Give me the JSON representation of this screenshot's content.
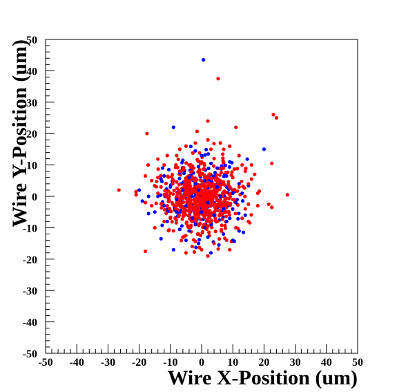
{
  "chart_data": {
    "type": "scatter",
    "title": "",
    "xlabel": "Wire X-Position (um)",
    "ylabel": "Wire Y-Position (um)",
    "xlim": [
      -50,
      50
    ],
    "ylim": [
      -50,
      50
    ],
    "x_ticks": [
      "-50",
      "-40",
      "-30",
      "-20",
      "-10",
      "0",
      "10",
      "20",
      "30",
      "40",
      "50"
    ],
    "y_ticks": [
      "-50",
      "-40",
      "-30",
      "-20",
      "-10",
      "0",
      "10",
      "20",
      "30",
      "40",
      "50"
    ],
    "grid": false,
    "legend": "none",
    "series": [
      {
        "color": "#0000ff",
        "points": [
          [
            0.6,
            43.5
          ],
          [
            -9,
            22
          ],
          [
            20,
            15
          ],
          [
            -2,
            14.5
          ],
          [
            -12.5,
            9
          ],
          [
            -10.5,
            8.5
          ],
          [
            -12,
            6.5
          ],
          [
            -13,
            5.5
          ],
          [
            -7,
            7.5
          ],
          [
            -4,
            6
          ],
          [
            -1,
            9.5
          ],
          [
            3,
            10.5
          ],
          [
            5,
            9
          ],
          [
            8,
            6.5
          ],
          [
            12,
            4
          ],
          [
            10,
            1
          ],
          [
            13,
            1
          ],
          [
            -2,
            4
          ],
          [
            -6,
            2
          ],
          [
            -10,
            3
          ],
          [
            -14,
            0
          ],
          [
            -17,
            0
          ],
          [
            -19,
            -1.5
          ],
          [
            -12,
            -3
          ],
          [
            -8,
            -5
          ],
          [
            -5,
            -3
          ],
          [
            -3,
            -7
          ],
          [
            0,
            -5
          ],
          [
            4,
            -6
          ],
          [
            7,
            -4
          ],
          [
            11,
            -2
          ],
          [
            -15,
            -5
          ],
          [
            -17,
            -5.5
          ],
          [
            -13,
            -13.5
          ],
          [
            -9,
            -17
          ],
          [
            -5,
            -14
          ],
          [
            -1,
            -15
          ],
          [
            1,
            -10
          ],
          [
            3,
            -18
          ],
          [
            7,
            -12
          ],
          [
            13,
            -7
          ],
          [
            14,
            -6
          ],
          [
            -7,
            -10.5
          ],
          [
            -4,
            -11
          ],
          [
            2,
            -2
          ],
          [
            -1,
            2
          ],
          [
            1,
            5
          ],
          [
            5,
            3
          ],
          [
            8,
            -8
          ],
          [
            -11,
            -8
          ],
          [
            -20,
            2
          ],
          [
            -6,
            11.5
          ],
          [
            0,
            13
          ],
          [
            9,
            11
          ],
          [
            -3,
            0
          ],
          [
            6,
            0
          ],
          [
            -8,
            -1
          ],
          [
            2,
            -13
          ],
          [
            10,
            -14
          ],
          [
            -2,
            -9
          ]
        ]
      },
      {
        "color": "#ff0000",
        "points": [
          [
            5.3,
            37.5
          ],
          [
            23,
            26
          ],
          [
            24,
            25
          ],
          [
            -17.5,
            20
          ],
          [
            2,
            24
          ],
          [
            11,
            22
          ],
          [
            22.5,
            10.5
          ],
          [
            -18,
            -17.5
          ],
          [
            27.5,
            0.5
          ],
          [
            -26.5,
            2
          ],
          [
            22.5,
            -3.5
          ],
          [
            21.5,
            -2.5
          ],
          [
            -18,
            6.5
          ],
          [
            -21,
            0.5
          ],
          [
            -21,
            1.5
          ],
          [
            16,
            5.5
          ],
          [
            17,
            7
          ],
          [
            15,
            -2.5
          ],
          [
            18,
            1
          ],
          [
            -16,
            -3
          ],
          [
            -14,
            1
          ],
          [
            -12,
            10
          ],
          [
            -8,
            13
          ],
          [
            -5,
            16
          ],
          [
            -2,
            17
          ],
          [
            2,
            18
          ],
          [
            6,
            17
          ],
          [
            9,
            16
          ],
          [
            13,
            10
          ],
          [
            14,
            8
          ],
          [
            15,
            4
          ],
          [
            -13,
            3
          ],
          [
            -11,
            -3
          ],
          [
            -10,
            -7
          ],
          [
            -9,
            -11
          ],
          [
            -6,
            -13
          ],
          [
            -3,
            -16
          ],
          [
            0,
            -17
          ],
          [
            4,
            -15
          ],
          [
            8,
            -14
          ],
          [
            11,
            -10
          ],
          [
            13,
            -7
          ],
          [
            14,
            -4
          ],
          [
            12,
            3
          ],
          [
            10,
            6
          ],
          [
            7,
            9
          ],
          [
            4,
            12
          ],
          [
            0,
            11
          ],
          [
            -4,
            10
          ],
          [
            -7,
            8
          ],
          [
            -9,
            5
          ],
          [
            -10,
            1
          ],
          [
            -8,
            -2
          ],
          [
            -6,
            -5
          ],
          [
            -3,
            -8
          ],
          [
            1,
            -9
          ],
          [
            5,
            -8
          ],
          [
            8,
            -5
          ],
          [
            10,
            -1
          ],
          [
            9,
            3
          ],
          [
            6,
            5
          ],
          [
            2,
            6
          ],
          [
            -2,
            5
          ],
          [
            -5,
            3
          ],
          [
            -6,
            0
          ],
          [
            -4,
            -3
          ],
          [
            -1,
            -4
          ],
          [
            3,
            -3
          ],
          [
            6,
            -2
          ],
          [
            7,
            1
          ],
          [
            4,
            2
          ],
          [
            0,
            1
          ],
          [
            -2,
            -1
          ],
          [
            1,
            -1
          ],
          [
            3,
            3
          ],
          [
            -3,
            2
          ],
          [
            -12,
            -8
          ],
          [
            -14,
            6
          ],
          [
            15,
            -8
          ],
          [
            12,
            13
          ],
          [
            -15,
            -10
          ],
          [
            -16,
            5
          ],
          [
            18,
            -3
          ],
          [
            -7,
            15
          ],
          [
            3,
            15
          ],
          [
            -1,
            -12
          ],
          [
            9,
            -17
          ],
          [
            -11,
            13
          ],
          [
            16,
            10
          ],
          [
            -18,
            -2
          ],
          [
            2,
            -19
          ],
          [
            -5,
            -18
          ]
        ]
      }
    ],
    "seed": 17,
    "extra_points": {
      "blue": 220,
      "red": 560,
      "spread": 5.6
    }
  }
}
